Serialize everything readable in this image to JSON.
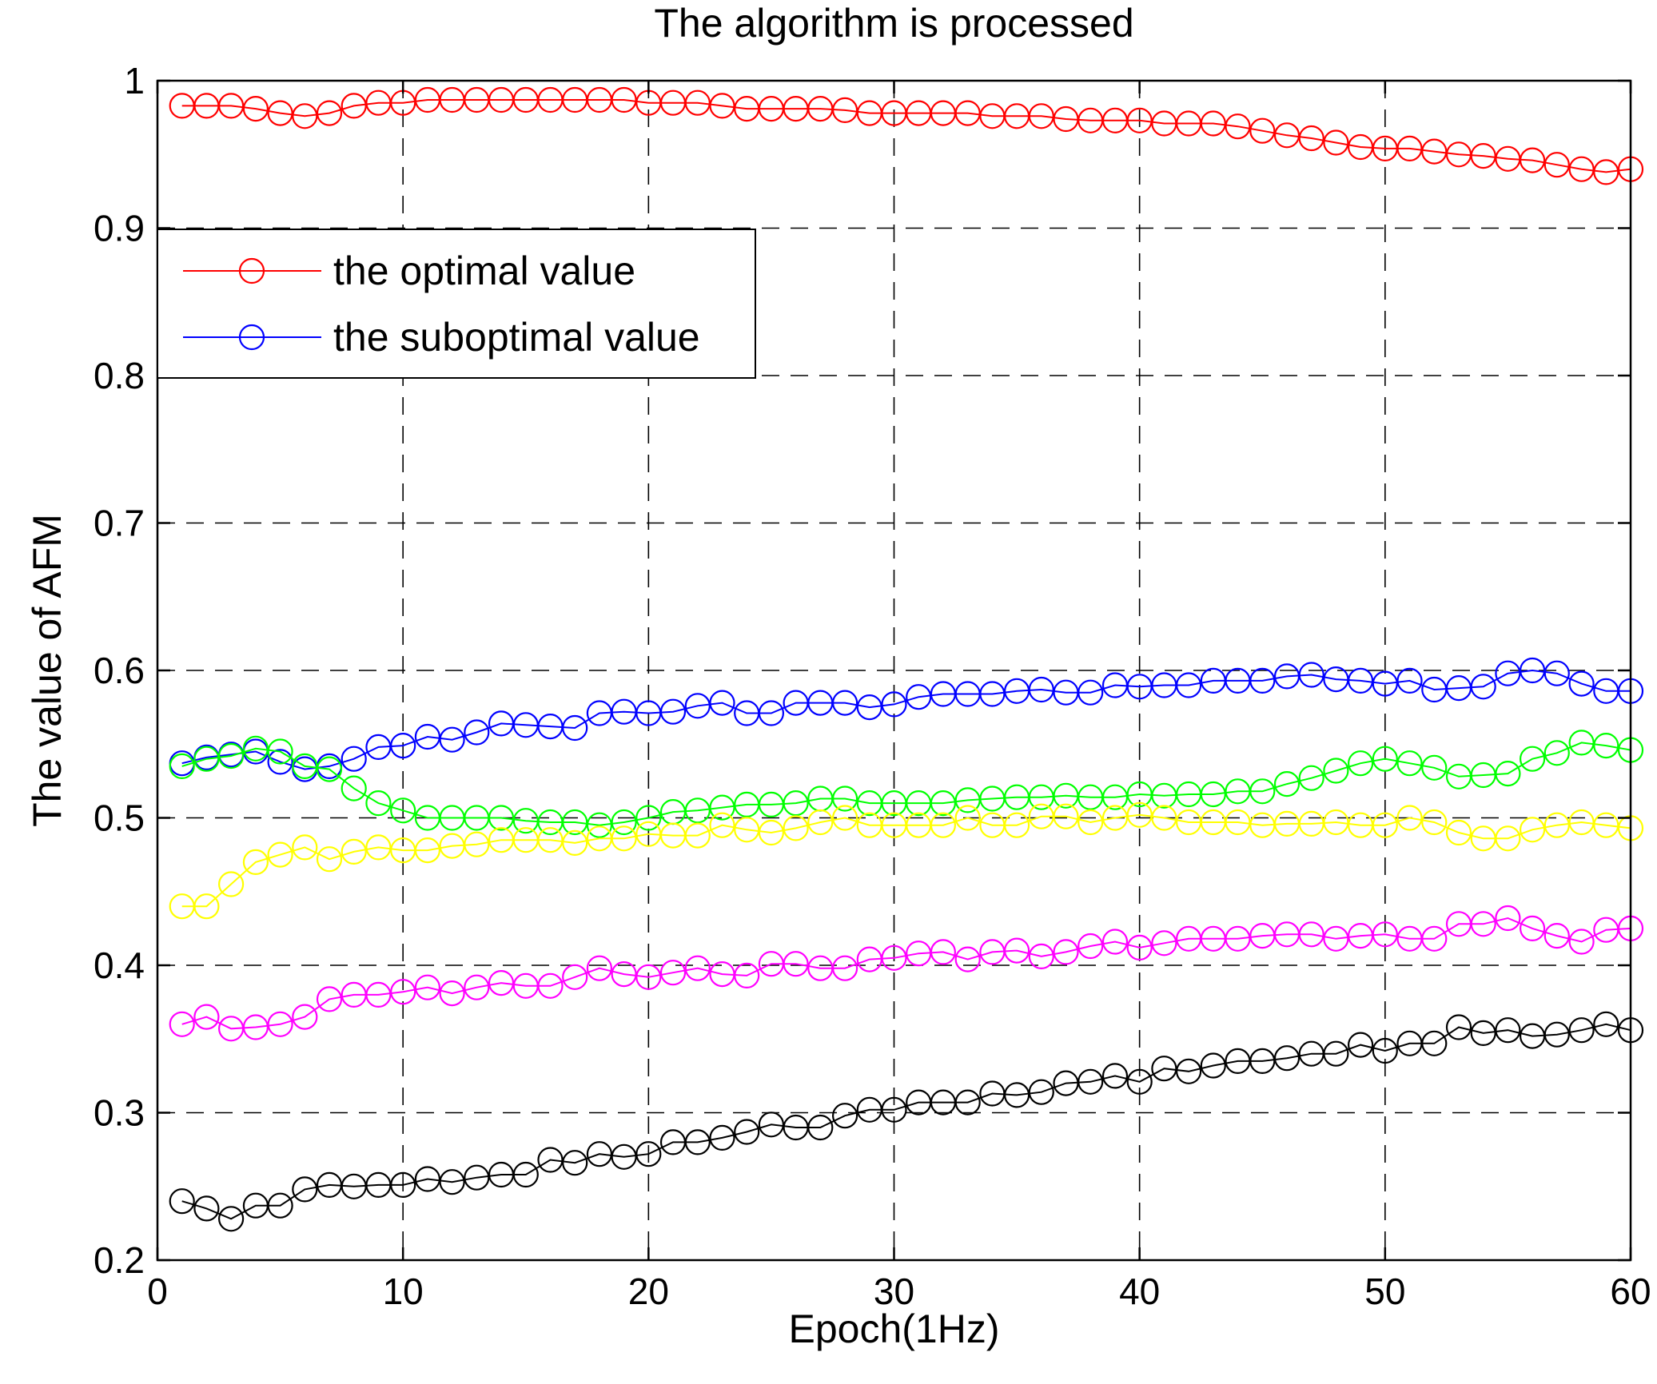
{
  "chart_data": {
    "type": "line",
    "title": "The algorithm is processed",
    "xlabel": "Epoch(1Hz)",
    "ylabel": "The value of AFM",
    "xlim": [
      0,
      60
    ],
    "ylim": [
      0.2,
      1
    ],
    "xticks": [
      0,
      10,
      20,
      30,
      40,
      50,
      60
    ],
    "yticks": [
      0.2,
      0.3,
      0.4,
      0.5,
      0.6,
      0.7,
      0.8,
      0.9,
      1
    ],
    "ytick_labels": [
      "0.2",
      "0.3",
      "0.4",
      "0.5",
      "0.6",
      "0.7",
      "0.8",
      "0.9",
      "1"
    ],
    "grid": "dashed",
    "legend_position": "top-left",
    "marker": "circle",
    "x": [
      1,
      2,
      3,
      4,
      5,
      6,
      7,
      8,
      9,
      10,
      11,
      12,
      13,
      14,
      15,
      16,
      17,
      18,
      19,
      20,
      21,
      22,
      23,
      24,
      25,
      26,
      27,
      28,
      29,
      30,
      31,
      32,
      33,
      34,
      35,
      36,
      37,
      38,
      39,
      40,
      41,
      42,
      43,
      44,
      45,
      46,
      47,
      48,
      49,
      50,
      51,
      52,
      53,
      54,
      55,
      56,
      57,
      58,
      59,
      60
    ],
    "series": [
      {
        "name": "the optimal value",
        "color": "#ff0000",
        "in_legend": true,
        "values": [
          0.983,
          0.983,
          0.983,
          0.981,
          0.978,
          0.976,
          0.978,
          0.983,
          0.985,
          0.985,
          0.987,
          0.987,
          0.987,
          0.987,
          0.987,
          0.987,
          0.987,
          0.987,
          0.987,
          0.985,
          0.985,
          0.985,
          0.983,
          0.981,
          0.981,
          0.981,
          0.981,
          0.98,
          0.978,
          0.978,
          0.978,
          0.978,
          0.978,
          0.976,
          0.976,
          0.976,
          0.974,
          0.973,
          0.973,
          0.973,
          0.971,
          0.971,
          0.971,
          0.969,
          0.966,
          0.963,
          0.961,
          0.958,
          0.955,
          0.954,
          0.954,
          0.952,
          0.95,
          0.949,
          0.947,
          0.946,
          0.943,
          0.94,
          0.938,
          0.94
        ]
      },
      {
        "name": "the suboptimal value",
        "color": "#0000ff",
        "in_legend": true,
        "values": [
          0.537,
          0.541,
          0.543,
          0.545,
          0.538,
          0.533,
          0.535,
          0.54,
          0.548,
          0.549,
          0.555,
          0.553,
          0.558,
          0.564,
          0.563,
          0.562,
          0.561,
          0.571,
          0.572,
          0.571,
          0.572,
          0.576,
          0.578,
          0.571,
          0.571,
          0.578,
          0.578,
          0.578,
          0.575,
          0.577,
          0.582,
          0.584,
          0.584,
          0.584,
          0.586,
          0.587,
          0.585,
          0.585,
          0.59,
          0.589,
          0.59,
          0.59,
          0.593,
          0.593,
          0.593,
          0.596,
          0.597,
          0.594,
          0.593,
          0.591,
          0.593,
          0.587,
          0.588,
          0.589,
          0.598,
          0.6,
          0.598,
          0.591,
          0.586,
          0.586
        ]
      },
      {
        "color": "#00ff00",
        "in_legend": false,
        "values": [
          0.535,
          0.54,
          0.542,
          0.547,
          0.545,
          0.535,
          0.533,
          0.52,
          0.51,
          0.505,
          0.5,
          0.5,
          0.5,
          0.5,
          0.498,
          0.497,
          0.497,
          0.495,
          0.497,
          0.5,
          0.504,
          0.505,
          0.507,
          0.509,
          0.509,
          0.51,
          0.513,
          0.513,
          0.51,
          0.51,
          0.51,
          0.51,
          0.512,
          0.513,
          0.514,
          0.514,
          0.515,
          0.514,
          0.514,
          0.516,
          0.515,
          0.516,
          0.516,
          0.518,
          0.518,
          0.523,
          0.527,
          0.532,
          0.537,
          0.54,
          0.537,
          0.534,
          0.528,
          0.529,
          0.53,
          0.54,
          0.544,
          0.551,
          0.549,
          0.546
        ]
      },
      {
        "color": "#ffff00",
        "in_legend": false,
        "values": [
          0.44,
          0.44,
          0.455,
          0.47,
          0.475,
          0.48,
          0.472,
          0.477,
          0.48,
          0.478,
          0.478,
          0.481,
          0.482,
          0.485,
          0.485,
          0.485,
          0.483,
          0.486,
          0.486,
          0.489,
          0.488,
          0.488,
          0.495,
          0.492,
          0.49,
          0.493,
          0.497,
          0.5,
          0.495,
          0.495,
          0.495,
          0.495,
          0.5,
          0.495,
          0.495,
          0.501,
          0.501,
          0.497,
          0.5,
          0.502,
          0.5,
          0.497,
          0.497,
          0.497,
          0.495,
          0.496,
          0.496,
          0.497,
          0.495,
          0.495,
          0.5,
          0.497,
          0.49,
          0.486,
          0.486,
          0.492,
          0.495,
          0.497,
          0.495,
          0.493
        ]
      },
      {
        "color": "#ff00ff",
        "in_legend": false,
        "values": [
          0.36,
          0.365,
          0.357,
          0.358,
          0.36,
          0.365,
          0.377,
          0.38,
          0.38,
          0.382,
          0.385,
          0.381,
          0.385,
          0.388,
          0.386,
          0.386,
          0.392,
          0.398,
          0.394,
          0.392,
          0.395,
          0.398,
          0.394,
          0.393,
          0.401,
          0.401,
          0.398,
          0.398,
          0.404,
          0.405,
          0.408,
          0.409,
          0.404,
          0.409,
          0.41,
          0.406,
          0.409,
          0.413,
          0.416,
          0.412,
          0.415,
          0.418,
          0.418,
          0.418,
          0.42,
          0.421,
          0.421,
          0.418,
          0.42,
          0.421,
          0.418,
          0.418,
          0.428,
          0.428,
          0.432,
          0.425,
          0.42,
          0.416,
          0.424,
          0.425
        ]
      },
      {
        "color": "#000000",
        "in_legend": false,
        "values": [
          0.24,
          0.235,
          0.228,
          0.237,
          0.237,
          0.248,
          0.251,
          0.25,
          0.251,
          0.251,
          0.255,
          0.253,
          0.256,
          0.258,
          0.258,
          0.268,
          0.266,
          0.272,
          0.27,
          0.272,
          0.28,
          0.28,
          0.283,
          0.287,
          0.292,
          0.29,
          0.29,
          0.298,
          0.302,
          0.302,
          0.307,
          0.307,
          0.307,
          0.313,
          0.312,
          0.314,
          0.32,
          0.321,
          0.325,
          0.321,
          0.33,
          0.328,
          0.332,
          0.335,
          0.335,
          0.337,
          0.34,
          0.34,
          0.346,
          0.342,
          0.347,
          0.347,
          0.358,
          0.354,
          0.356,
          0.352,
          0.353,
          0.356,
          0.36,
          0.356
        ]
      }
    ]
  }
}
